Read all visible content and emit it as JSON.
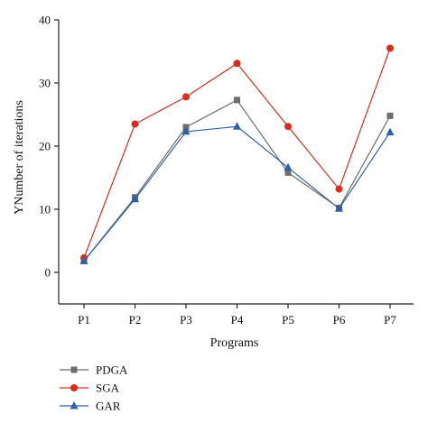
{
  "chart_data": {
    "type": "line",
    "categories": [
      "P1",
      "P2",
      "P3",
      "P4",
      "P5",
      "P6",
      "P7"
    ],
    "xlabel": "Programs",
    "ylabel": "YNumber of iterations",
    "ylim": [
      -5,
      40
    ],
    "yticks": [
      0,
      10,
      20,
      30,
      40
    ],
    "grid": false,
    "legend_position": "bottom-left",
    "series": [
      {
        "name": "PDGA",
        "color": "#6e6e6e",
        "marker": "square",
        "values": [
          1.8,
          11.9,
          23.0,
          27.3,
          15.8,
          10.2,
          24.8
        ]
      },
      {
        "name": "SGA",
        "color": "#d62d20",
        "marker": "circle",
        "values": [
          2.3,
          23.5,
          27.8,
          33.1,
          23.1,
          13.2,
          35.5
        ]
      },
      {
        "name": "GAR",
        "color": "#2f5fa8",
        "marker": "triangle",
        "values": [
          1.8,
          11.6,
          22.3,
          23.1,
          16.6,
          10.1,
          22.2
        ]
      }
    ]
  }
}
